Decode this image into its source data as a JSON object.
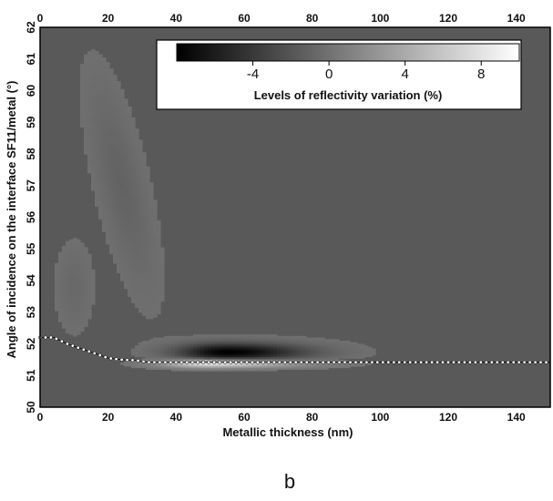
{
  "chart_data": {
    "type": "heatmap",
    "xlabel": "Metallic thickness (nm)",
    "ylabel": "Angle of incidence on the interface SF11/metal (°)",
    "xlim": [
      0,
      150
    ],
    "ylim": [
      50,
      62
    ],
    "xticks": [
      "0",
      "20",
      "40",
      "60",
      "80",
      "100",
      "120",
      "140"
    ],
    "yticks": [
      "50",
      "51",
      "52",
      "53",
      "54",
      "55",
      "56",
      "57",
      "58",
      "59",
      "60",
      "61",
      "62"
    ],
    "top_axis_ticks": [
      "0",
      "20",
      "40",
      "60",
      "80",
      "100",
      "120",
      "140"
    ],
    "colorbar": {
      "title": "Levels of reflectivity variation (%)",
      "range": [
        -8,
        10
      ],
      "ticks": [
        "-4",
        "0",
        "4",
        "8"
      ],
      "colormap": "grayscale"
    },
    "background_level_percent": 0,
    "features": {
      "negative_lobe": {
        "center_x_nm": 55,
        "center_y_deg": 51.75,
        "peak_percent": -8
      },
      "positive_ridge": {
        "center_x_nm": 50,
        "center_y_deg": 51.4,
        "peak_percent": 9
      },
      "faint_tail_above": {
        "center_x_nm": 25,
        "center_y_deg": 56,
        "peak_percent": -1
      }
    },
    "resonance_curve": {
      "x": [
        0,
        4,
        8,
        12,
        16,
        20,
        24,
        28,
        32,
        40,
        60,
        80,
        100,
        120,
        150
      ],
      "y": [
        52.2,
        52.2,
        52.0,
        51.85,
        51.7,
        51.55,
        51.5,
        51.48,
        51.42,
        51.42,
        51.42,
        51.42,
        51.42,
        51.42,
        51.42
      ]
    }
  },
  "panel_label": "b",
  "colors": {
    "background_gray": "#595959",
    "frame": "#000000",
    "curve_fill": "#ffffff"
  }
}
